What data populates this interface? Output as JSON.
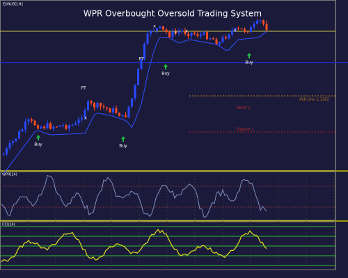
{
  "header": {
    "symbol": "EURUSD,H1",
    "title": "WPR Overbought Oversold Trading System"
  },
  "annotations": {
    "buy": [
      "Buy",
      "Buy",
      "Buy",
      "Buy"
    ],
    "pt": [
      "PT",
      "PT"
    ],
    "exit": [
      "x",
      "x",
      "x",
      "x",
      "x"
    ]
  },
  "levels": {
    "ask": "ASK Line: 1.1282",
    "support": "Support 1",
    "resist": "Resist 1"
  },
  "panels": {
    "oscillator": "WPR(14)",
    "cci": "CCI(14)"
  }
}
